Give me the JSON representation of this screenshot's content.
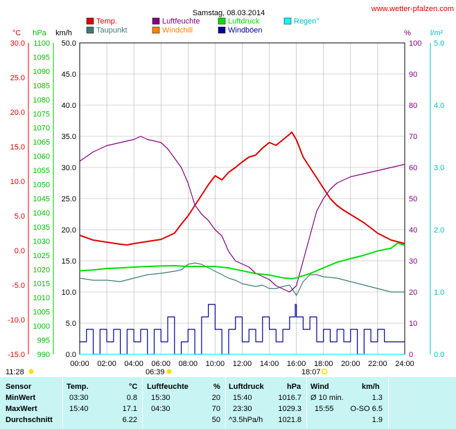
{
  "header": {
    "title": "Samstag, 08.03.2014",
    "site": "www.wetter-pfalzen.com"
  },
  "legend": [
    {
      "label": "Temp.",
      "color": "#e00000"
    },
    {
      "label": "Taupunkt",
      "color": "#3f7a78"
    },
    {
      "label": "Luftfeuchte",
      "color": "#800080"
    },
    {
      "label": "Windchill",
      "color": "#ff8000"
    },
    {
      "label": "Luftdruck",
      "color": "#00e000"
    },
    {
      "label": "Windböen",
      "color": "#000090"
    },
    {
      "label": "Regen°",
      "color": "#00ffff"
    }
  ],
  "axes": {
    "temp": {
      "unit": "°C",
      "ticks": [
        "30.0",
        "25.0",
        "20.0",
        "15.0",
        "10.0",
        "5.0",
        "0.0",
        "-5.0",
        "-10.0",
        "-15.0"
      ],
      "color": "#e00000"
    },
    "press": {
      "unit": "hPa",
      "ticks": [
        "1100",
        "1095",
        "1090",
        "1085",
        "1080",
        "1075",
        "1070",
        "1065",
        "1060",
        "1055",
        "1050",
        "1045",
        "1040",
        "1035",
        "1030",
        "1025",
        "1020",
        "1015",
        "1010",
        "1005",
        "1000",
        "995",
        "990"
      ],
      "color": "#00c000"
    },
    "wind": {
      "unit": "km/h",
      "ticks": [
        "50.0",
        "45.0",
        "40.0",
        "35.0",
        "30.0",
        "25.0",
        "20.0",
        "15.0",
        "10.0",
        "5.0",
        "0.0"
      ],
      "color": "#000000"
    },
    "hum": {
      "unit": "%",
      "ticks": [
        "100",
        "90",
        "80",
        "70",
        "60",
        "50",
        "40",
        "30",
        "20",
        "10",
        "0"
      ],
      "color": "#800080"
    },
    "rain": {
      "unit": "l/m²",
      "ticks": [
        "5.0",
        "4.0",
        "3.0",
        "2.0",
        "1.0",
        "0.0"
      ],
      "color": "#00c0c0"
    },
    "time": {
      "ticks": [
        "00:00",
        "02:00",
        "04:00",
        "06:00",
        "08:00",
        "10:00",
        "12:00",
        "14:00",
        "16:00",
        "18:00",
        "20:00",
        "22:00",
        "24:00"
      ]
    }
  },
  "sun": {
    "daylength": "11:28",
    "sunrise": "06:39",
    "sunset": "18:07"
  },
  "stats": {
    "headers": {
      "sensor": "Sensor",
      "temp": "Temp.",
      "temp_unit": "°C",
      "hum": "Luftfeuchte",
      "hum_unit": "%",
      "press": "Luftdruck",
      "press_unit": "hPa",
      "wind": "Wind",
      "wind_unit": "km/h"
    },
    "rows": [
      {
        "label": "MinWert",
        "temp_time": "03:30",
        "temp_val": "0.8",
        "hum_time": "15:30",
        "hum_val": "20",
        "press_time": "15:40",
        "press_val": "1016.7",
        "wind_time": "Ø 10 min.",
        "wind_val": "1.3"
      },
      {
        "label": "MaxWert",
        "temp_time": "15:40",
        "temp_val": "17.1",
        "hum_time": "04:30",
        "hum_val": "70",
        "press_time": "23:30",
        "press_val": "1029.3",
        "wind_time": "15:55",
        "wind_val": "O-SO 6.5"
      },
      {
        "label": "Durchschnitt",
        "temp_time": "",
        "temp_val": "6.22",
        "hum_time": "",
        "hum_val": "50",
        "press_time": "^3.5hPa/h",
        "press_val": "1021.8",
        "wind_time": "",
        "wind_val": "1.9"
      }
    ]
  },
  "chart_data": {
    "type": "line",
    "title": "Samstag, 08.03.2014",
    "x_range": [
      "00:00",
      "24:00"
    ],
    "grid": true,
    "legend_placement": "top",
    "series": [
      {
        "name": "Temp.",
        "axis": "°C",
        "color": "#e00000",
        "x": [
          "00:00",
          "01:00",
          "02:00",
          "03:00",
          "03:30",
          "04:00",
          "05:00",
          "06:00",
          "07:00",
          "07:30",
          "08:00",
          "08:30",
          "09:00",
          "09:30",
          "10:00",
          "10:30",
          "11:00",
          "11:30",
          "12:00",
          "12:30",
          "13:00",
          "13:30",
          "14:00",
          "14:30",
          "15:00",
          "15:30",
          "15:40",
          "16:00",
          "16:30",
          "17:00",
          "17:30",
          "18:00",
          "18:30",
          "19:00",
          "19:30",
          "20:00",
          "21:00",
          "22:00",
          "23:00",
          "24:00"
        ],
        "y": [
          2.2,
          1.5,
          1.2,
          0.9,
          0.8,
          1.0,
          1.3,
          1.6,
          2.5,
          3.8,
          5.0,
          6.5,
          8.0,
          9.5,
          10.8,
          10.2,
          11.3,
          12.0,
          12.8,
          13.5,
          13.8,
          14.8,
          15.6,
          15.2,
          16.0,
          16.8,
          17.1,
          16.0,
          13.5,
          12.0,
          10.5,
          9.0,
          7.5,
          6.5,
          5.8,
          5.2,
          4.0,
          2.5,
          1.5,
          1.0
        ]
      },
      {
        "name": "Taupunkt",
        "axis": "°C",
        "color": "#3f7a78",
        "x": [
          "00:00",
          "01:00",
          "02:00",
          "03:00",
          "04:00",
          "05:00",
          "06:00",
          "07:00",
          "07:30",
          "08:00",
          "08:30",
          "09:00",
          "09:30",
          "10:00",
          "10:30",
          "11:00",
          "11:30",
          "12:00",
          "12:30",
          "13:00",
          "13:30",
          "14:00",
          "14:30",
          "15:00",
          "15:30",
          "16:00",
          "16:30",
          "17:00",
          "17:30",
          "18:00",
          "19:00",
          "20:00",
          "21:00",
          "22:00",
          "23:00",
          "24:00"
        ],
        "y": [
          -4.0,
          -4.3,
          -4.3,
          -4.5,
          -4.0,
          -3.5,
          -3.3,
          -3.0,
          -2.8,
          -2.0,
          -1.8,
          -2.0,
          -2.5,
          -3.0,
          -3.5,
          -4.0,
          -4.3,
          -4.8,
          -5.0,
          -5.2,
          -5.0,
          -5.5,
          -5.5,
          -5.2,
          -5.0,
          -6.5,
          -4.5,
          -3.5,
          -3.5,
          -3.8,
          -4.0,
          -4.5,
          -5.0,
          -5.5,
          -6.0,
          -6.0
        ]
      },
      {
        "name": "Luftfeuchte",
        "axis": "%",
        "color": "#800080",
        "x": [
          "00:00",
          "01:00",
          "02:00",
          "03:00",
          "04:00",
          "04:30",
          "05:00",
          "06:00",
          "06:30",
          "07:00",
          "07:30",
          "08:00",
          "08:30",
          "09:00",
          "09:30",
          "10:00",
          "10:30",
          "11:00",
          "11:30",
          "12:00",
          "12:30",
          "13:00",
          "13:30",
          "14:00",
          "14:30",
          "15:00",
          "15:30",
          "16:00",
          "16:30",
          "17:00",
          "17:30",
          "18:00",
          "18:30",
          "19:00",
          "20:00",
          "21:00",
          "22:00",
          "23:00",
          "24:00"
        ],
        "y": [
          62,
          65,
          67,
          68,
          69,
          70,
          69,
          68,
          66,
          63,
          60,
          55,
          48,
          45,
          43,
          40,
          38,
          33,
          30,
          29,
          28,
          26,
          25,
          24,
          22,
          21,
          20,
          22,
          30,
          38,
          46,
          50,
          53,
          55,
          57,
          58,
          59,
          60,
          61
        ]
      },
      {
        "name": "Luftdruck",
        "axis": "hPa",
        "color": "#00e000",
        "x": [
          "00:00",
          "01:00",
          "02:00",
          "03:00",
          "04:00",
          "05:00",
          "06:00",
          "07:00",
          "08:00",
          "09:00",
          "10:00",
          "11:00",
          "12:00",
          "13:00",
          "14:00",
          "15:00",
          "15:40",
          "16:00",
          "17:00",
          "18:00",
          "19:00",
          "20:00",
          "21:00",
          "22:00",
          "23:00",
          "23:30",
          "24:00"
        ],
        "y": [
          1019.5,
          1019.8,
          1020.3,
          1020.5,
          1020.8,
          1021.0,
          1021.2,
          1021.3,
          1021.0,
          1021.0,
          1021.0,
          1020.5,
          1019.5,
          1018.5,
          1018.0,
          1017.0,
          1016.7,
          1017.0,
          1018.5,
          1020.5,
          1022.5,
          1023.8,
          1025.0,
          1026.5,
          1027.5,
          1029.3,
          1028.5
        ]
      },
      {
        "name": "Windböen",
        "axis": "km/h",
        "color": "#000090",
        "x": [
          "00:00",
          "00:30",
          "01:00",
          "01:30",
          "02:00",
          "02:30",
          "03:00",
          "03:30",
          "04:00",
          "04:30",
          "05:00",
          "05:30",
          "06:00",
          "06:30",
          "07:00",
          "07:30",
          "08:00",
          "08:30",
          "09:00",
          "09:30",
          "10:00",
          "10:30",
          "11:00",
          "11:30",
          "12:00",
          "12:30",
          "13:00",
          "13:30",
          "14:00",
          "14:30",
          "15:00",
          "15:30",
          "15:55",
          "16:00",
          "16:30",
          "17:00",
          "17:30",
          "18:00",
          "18:30",
          "19:00",
          "19:30",
          "20:00",
          "20:30",
          "21:00",
          "21:30",
          "22:00",
          "22:30",
          "23:00",
          "23:30",
          "24:00"
        ],
        "y": [
          2,
          4,
          0,
          4,
          2,
          4,
          0,
          4,
          2,
          4,
          0,
          4,
          2,
          6,
          0,
          2,
          4,
          0,
          6,
          8,
          4,
          0,
          4,
          6,
          2,
          4,
          2,
          6,
          4,
          2,
          4,
          6,
          8,
          6,
          4,
          6,
          2,
          4,
          2,
          4,
          2,
          4,
          0,
          4,
          2,
          4,
          2,
          2,
          2,
          2
        ]
      },
      {
        "name": "Regen°",
        "axis": "l/m²",
        "color": "#00ffff",
        "x": [
          "00:00",
          "24:00"
        ],
        "y": [
          0.0,
          0.0
        ]
      }
    ]
  }
}
